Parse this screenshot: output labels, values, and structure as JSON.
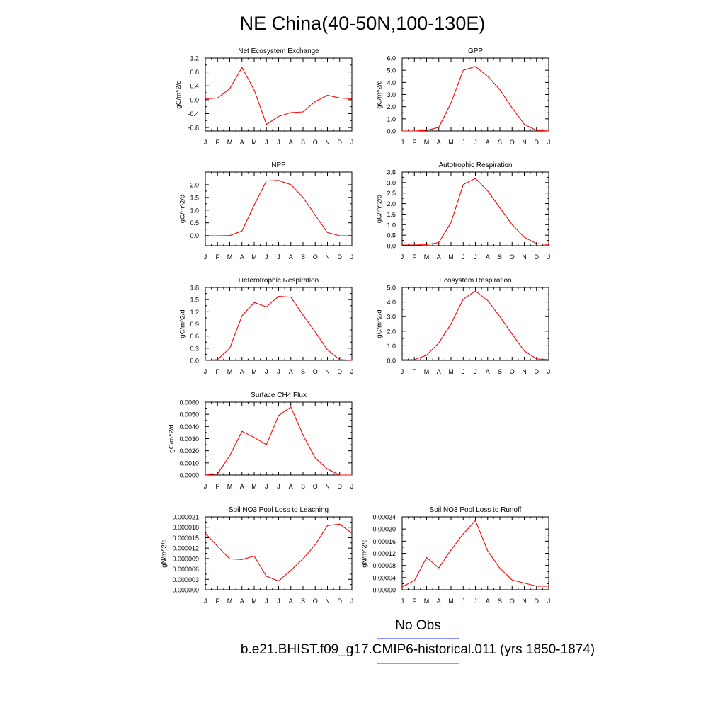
{
  "title": "NE China(40-50N,100-130E)",
  "legend": {
    "obs_label": "No Obs",
    "obs_color": "#8888ff",
    "model_label": "b.e21.BHIST.f09_g17.CMIP6-historical.011 (yrs 1850-1874)",
    "model_color": "#ff0000"
  },
  "chart_data": [
    {
      "type": "line",
      "title": "Net Ecosystem Exchange",
      "ylabel": "gC/m^2/d",
      "x": [
        "J",
        "F",
        "M",
        "A",
        "M",
        "J",
        "J",
        "A",
        "S",
        "O",
        "N",
        "D",
        "J"
      ],
      "ylim": [
        -0.9,
        1.2
      ],
      "yticks": [
        -0.8,
        -0.4,
        0.0,
        0.4,
        0.8,
        1.2
      ],
      "ytick_labels": [
        "-0.8",
        "-0.4",
        "0.0",
        "0.4",
        "0.8",
        "1.2"
      ],
      "series": [
        {
          "values": [
            0.03,
            0.05,
            0.32,
            0.93,
            0.28,
            -0.71,
            -0.48,
            -0.37,
            -0.35,
            -0.05,
            0.13,
            0.05,
            0.03
          ]
        }
      ]
    },
    {
      "type": "line",
      "title": "GPP",
      "ylabel": "gC/m^2/d",
      "x": [
        "J",
        "F",
        "M",
        "A",
        "M",
        "J",
        "J",
        "A",
        "S",
        "O",
        "N",
        "D",
        "J"
      ],
      "ylim": [
        0.0,
        6.0
      ],
      "yticks": [
        0.0,
        1.0,
        2.0,
        3.0,
        4.0,
        5.0,
        6.0
      ],
      "ytick_labels": [
        "0.0",
        "1.0",
        "2.0",
        "3.0",
        "4.0",
        "5.0",
        "6.0"
      ],
      "series": [
        {
          "values": [
            0.0,
            0.0,
            0.05,
            0.3,
            2.3,
            5.0,
            5.3,
            4.5,
            3.4,
            1.9,
            0.55,
            0.05,
            0.0
          ]
        }
      ]
    },
    {
      "type": "line",
      "title": "NPP",
      "ylabel": "gC/m^2/d",
      "x": [
        "J",
        "F",
        "M",
        "A",
        "M",
        "J",
        "J",
        "A",
        "S",
        "O",
        "N",
        "D",
        "J"
      ],
      "ylim": [
        -0.4,
        2.5
      ],
      "yticks": [
        0.0,
        0.5,
        1.0,
        1.5,
        2.0
      ],
      "ytick_labels": [
        "0.0",
        "0.5",
        "1.0",
        "1.5",
        "2.0"
      ],
      "series": [
        {
          "values": [
            -0.01,
            -0.01,
            0.0,
            0.18,
            1.2,
            2.15,
            2.17,
            2.0,
            1.5,
            0.8,
            0.12,
            -0.01,
            -0.01
          ]
        }
      ]
    },
    {
      "type": "line",
      "title": "Autotrophic Respiration",
      "ylabel": "gC/m^2/d",
      "x": [
        "J",
        "F",
        "M",
        "A",
        "M",
        "J",
        "J",
        "A",
        "S",
        "O",
        "N",
        "D",
        "J"
      ],
      "ylim": [
        0.0,
        3.5
      ],
      "yticks": [
        0.0,
        0.5,
        1.0,
        1.5,
        2.0,
        2.5,
        3.0,
        3.5
      ],
      "ytick_labels": [
        "0.0",
        "0.5",
        "1.0",
        "1.5",
        "2.0",
        "2.5",
        "3.0",
        "3.5"
      ],
      "series": [
        {
          "values": [
            0.03,
            0.03,
            0.05,
            0.15,
            1.1,
            2.9,
            3.2,
            2.6,
            1.8,
            1.0,
            0.4,
            0.1,
            0.05
          ]
        }
      ]
    },
    {
      "type": "line",
      "title": "Heterotrophic Respiration",
      "ylabel": "gC/m^2/d",
      "x": [
        "J",
        "F",
        "M",
        "A",
        "M",
        "J",
        "J",
        "A",
        "S",
        "O",
        "N",
        "D",
        "J"
      ],
      "ylim": [
        0.0,
        1.8
      ],
      "yticks": [
        0.0,
        0.3,
        0.6,
        0.9,
        1.2,
        1.5,
        1.8
      ],
      "ytick_labels": [
        "0.0",
        "0.3",
        "0.6",
        "0.9",
        "1.2",
        "1.5",
        "1.8"
      ],
      "series": [
        {
          "values": [
            0.0,
            0.02,
            0.3,
            1.1,
            1.43,
            1.32,
            1.58,
            1.56,
            1.12,
            0.7,
            0.26,
            0.02,
            0.0
          ]
        }
      ]
    },
    {
      "type": "line",
      "title": "Ecosystem Respiration",
      "ylabel": "gC/m^2/d",
      "x": [
        "J",
        "F",
        "M",
        "A",
        "M",
        "J",
        "J",
        "A",
        "S",
        "O",
        "N",
        "D",
        "J"
      ],
      "ylim": [
        0.0,
        5.0
      ],
      "yticks": [
        0.0,
        1.0,
        2.0,
        3.0,
        4.0,
        5.0
      ],
      "ytick_labels": [
        "0.0",
        "1.0",
        "2.0",
        "3.0",
        "4.0",
        "5.0"
      ],
      "series": [
        {
          "values": [
            0.05,
            0.05,
            0.35,
            1.2,
            2.5,
            4.2,
            4.75,
            4.1,
            3.0,
            1.8,
            0.65,
            0.1,
            0.05
          ]
        }
      ]
    },
    {
      "type": "line",
      "title": "Surface CH4 Flux",
      "ylabel": "gC/m^2/d",
      "x": [
        "J",
        "F",
        "M",
        "A",
        "M",
        "J",
        "J",
        "A",
        "S",
        "O",
        "N",
        "D",
        "J"
      ],
      "ylim": [
        0.0,
        0.006
      ],
      "yticks": [
        0.0,
        0.001,
        0.002,
        0.003,
        0.004,
        0.005,
        0.006
      ],
      "ytick_labels": [
        "0.0000",
        "0.0010",
        "0.0020",
        "0.0030",
        "0.0040",
        "0.0050",
        "0.0060"
      ],
      "series": [
        {
          "values": [
            0.0,
            0.0001,
            0.0016,
            0.0036,
            0.0031,
            0.0025,
            0.0049,
            0.0056,
            0.0033,
            0.0014,
            0.0005,
            0.0,
            0.0
          ]
        }
      ]
    },
    {
      "type": "line",
      "title": "Soil NO3 Pool Loss to Leaching",
      "ylabel": "gN/m^2/d",
      "x": [
        "J",
        "F",
        "M",
        "A",
        "M",
        "J",
        "J",
        "A",
        "S",
        "O",
        "N",
        "D",
        "J"
      ],
      "ylim": [
        0.0,
        2.1e-05
      ],
      "yticks": [
        0.0,
        3e-06,
        6e-06,
        9e-06,
        1.2e-05,
        1.5e-05,
        1.8e-05,
        2.1e-05
      ],
      "ytick_labels": [
        "0.000000",
        "0.000003",
        "0.000006",
        "0.000009",
        "0.000012",
        "0.000015",
        "0.000018",
        "0.000021"
      ],
      "series": [
        {
          "values": [
            1.63e-05,
            1.25e-05,
            8.9e-06,
            8.7e-06,
            9.7e-06,
            3.9e-06,
            2.5e-06,
            5.6e-06,
            8.9e-06,
            1.3e-05,
            1.85e-05,
            1.89e-05,
            1.63e-05
          ]
        }
      ]
    },
    {
      "type": "line",
      "title": "Soil NO3 Pool Loss to Runoff",
      "ylabel": "gN/m^2/d",
      "x": [
        "J",
        "F",
        "M",
        "A",
        "M",
        "J",
        "J",
        "A",
        "S",
        "O",
        "N",
        "D",
        "J"
      ],
      "ylim": [
        0.0,
        0.00024
      ],
      "yticks": [
        0.0,
        4e-05,
        8e-05,
        0.00012,
        0.00016,
        0.0002,
        0.00024
      ],
      "ytick_labels": [
        "0.00000",
        "0.00004",
        "0.00008",
        "0.00012",
        "0.00016",
        "0.00020",
        "0.00024"
      ],
      "series": [
        {
          "values": [
            1e-05,
            3e-05,
            0.000106,
            7.2e-05,
            0.000131,
            0.000184,
            0.000228,
            0.000128,
            7.1e-05,
            3.2e-05,
            2.2e-05,
            1.2e-05,
            1.2e-05
          ]
        }
      ]
    }
  ]
}
